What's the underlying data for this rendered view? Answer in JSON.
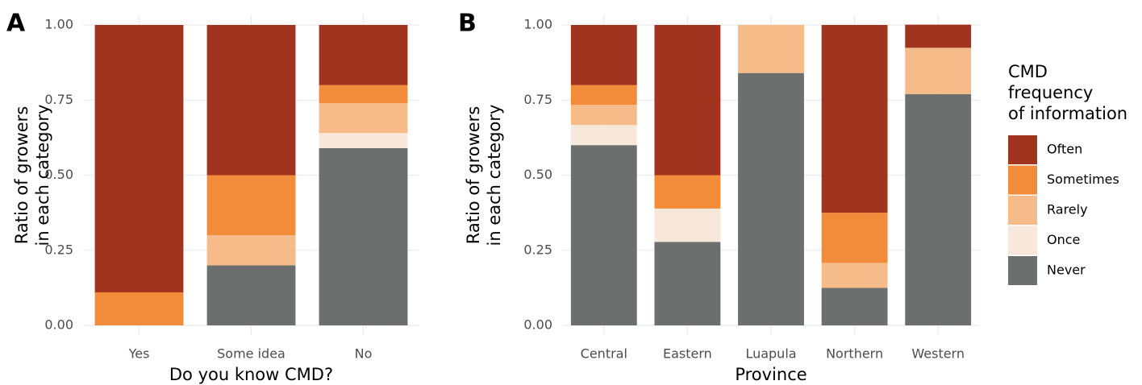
{
  "chart_data": [
    {
      "type": "stacked_bar",
      "panel_label": "A",
      "x_label": "Do you know CMD?",
      "y_label": [
        "Ratio of growers",
        "in each category"
      ],
      "categories": [
        "Yes",
        "Some idea",
        "No"
      ],
      "series": [
        {
          "color": "#6d6f6e",
          "values": [
            0,
            0.2,
            0.59
          ]
        },
        {
          "color": "#f8e8dc",
          "values": [
            0,
            0,
            0.05
          ]
        },
        {
          "color": "#f5bb88",
          "values": [
            0,
            0.1,
            0.1
          ]
        },
        {
          "color": "#f28b3a",
          "values": [
            0.11,
            0.2,
            0.06
          ]
        },
        {
          "color": "#a0341f",
          "values": [
            0.89,
            0.5,
            0.2
          ]
        }
      ],
      "ylim": [
        0,
        1
      ],
      "yticks": [
        {
          "value": 0,
          "label": "0.00"
        },
        {
          "value": 0.25,
          "label": "0.25"
        },
        {
          "value": 0.5,
          "label": "0.50"
        },
        {
          "value": 0.75,
          "label": "0.75"
        },
        {
          "value": 1,
          "label": "1.00"
        }
      ],
      "grid": true
    },
    {
      "type": "stacked_bar",
      "panel_label": "B",
      "x_label": "Province",
      "y_label": [
        "Ratio of growers",
        "in each category"
      ],
      "categories": [
        "Central",
        "Eastern",
        "Luapula",
        "Northern",
        "Western"
      ],
      "series": [
        {
          "name": "Never",
          "color": "#6d6f6e",
          "values": [
            0.6,
            0.278,
            0.84,
            0.125,
            0.77
          ]
        },
        {
          "name": "Once",
          "color": "#f8e8dc",
          "values": [
            0.067,
            0.111,
            0,
            0,
            0
          ]
        },
        {
          "name": "Rarely",
          "color": "#f5bb88",
          "values": [
            0.067,
            0,
            0.16,
            0.083,
            0.154
          ]
        },
        {
          "name": "Sometimes",
          "color": "#f28b3a",
          "values": [
            0.066,
            0.111,
            0,
            0.167,
            0
          ]
        },
        {
          "name": "Often",
          "color": "#a0341f",
          "values": [
            0.2,
            0.5,
            0,
            0.625,
            0.077
          ]
        }
      ],
      "ylim": [
        0,
        1
      ],
      "yticks": [
        {
          "value": 0,
          "label": "0.00"
        },
        {
          "value": 0.25,
          "label": "0.25"
        },
        {
          "value": 0.5,
          "label": "0.50"
        },
        {
          "value": 0.75,
          "label": "0.75"
        },
        {
          "value": 1,
          "label": "1.00"
        }
      ],
      "grid": true,
      "legend_title": [
        "CMD",
        "frequency",
        "of information"
      ],
      "legend_position": "right"
    }
  ]
}
